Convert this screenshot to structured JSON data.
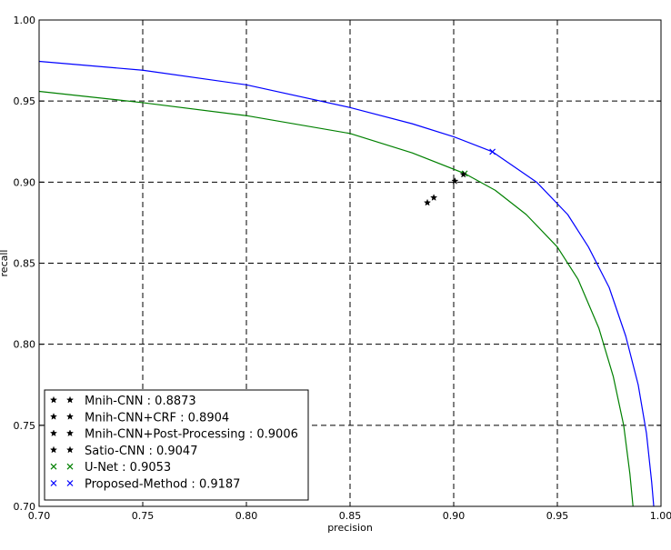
{
  "chart_data": {
    "type": "line",
    "xlabel": "precision",
    "ylabel": "recall",
    "xlim": [
      0.7,
      1.0
    ],
    "ylim": [
      0.7,
      1.0
    ],
    "grid": true,
    "grid_style": "dashed",
    "legend_position": "lower-left",
    "x_ticks": [
      "0.70",
      "0.75",
      "0.80",
      "0.85",
      "0.90",
      "0.95",
      "1.00"
    ],
    "y_ticks": [
      "0.70",
      "0.75",
      "0.80",
      "0.85",
      "0.90",
      "0.95",
      "1.00"
    ],
    "series": [
      {
        "name": "Proposed-Method : 0.9187",
        "kind": "curve",
        "color": "#0000ff",
        "marker": "x",
        "breakeven": [
          0.9187,
          0.9187
        ],
        "points": [
          [
            0.7,
            0.9745
          ],
          [
            0.75,
            0.969
          ],
          [
            0.8,
            0.96
          ],
          [
            0.85,
            0.946
          ],
          [
            0.88,
            0.936
          ],
          [
            0.9,
            0.928
          ],
          [
            0.9187,
            0.9187
          ],
          [
            0.94,
            0.9
          ],
          [
            0.955,
            0.88
          ],
          [
            0.965,
            0.86
          ],
          [
            0.975,
            0.835
          ],
          [
            0.983,
            0.805
          ],
          [
            0.989,
            0.775
          ],
          [
            0.993,
            0.745
          ],
          [
            0.9955,
            0.715
          ],
          [
            0.9965,
            0.7
          ]
        ]
      },
      {
        "name": "U-Net : 0.9053",
        "kind": "curve",
        "color": "#008000",
        "marker": "x",
        "breakeven": [
          0.9053,
          0.9053
        ],
        "points": [
          [
            0.7,
            0.956
          ],
          [
            0.75,
            0.949
          ],
          [
            0.8,
            0.941
          ],
          [
            0.85,
            0.93
          ],
          [
            0.88,
            0.918
          ],
          [
            0.9053,
            0.9053
          ],
          [
            0.92,
            0.895
          ],
          [
            0.935,
            0.88
          ],
          [
            0.95,
            0.86
          ],
          [
            0.96,
            0.84
          ],
          [
            0.97,
            0.81
          ],
          [
            0.977,
            0.78
          ],
          [
            0.982,
            0.75
          ],
          [
            0.985,
            0.72
          ],
          [
            0.9865,
            0.7
          ]
        ]
      },
      {
        "name": "Mnih-CNN : 0.8873",
        "kind": "point",
        "color": "#000000",
        "marker": "star",
        "x": 0.8873,
        "y": 0.8873
      },
      {
        "name": "Mnih-CNN+CRF : 0.8904",
        "kind": "point",
        "color": "#000000",
        "marker": "star",
        "x": 0.8904,
        "y": 0.8904
      },
      {
        "name": "Mnih-CNN+Post-Processing : 0.9006",
        "kind": "point",
        "color": "#000000",
        "marker": "star",
        "x": 0.9006,
        "y": 0.9006
      },
      {
        "name": "Satio-CNN : 0.9047",
        "kind": "point",
        "color": "#000000",
        "marker": "star",
        "x": 0.9047,
        "y": 0.9047
      }
    ],
    "legend_order": [
      {
        "label": "Mnih-CNN : 0.8873",
        "marker": "star",
        "color": "#000000"
      },
      {
        "label": "Mnih-CNN+CRF : 0.8904",
        "marker": "star",
        "color": "#000000"
      },
      {
        "label": "Mnih-CNN+Post-Processing : 0.9006",
        "marker": "star",
        "color": "#000000"
      },
      {
        "label": "Satio-CNN : 0.9047",
        "marker": "star",
        "color": "#000000"
      },
      {
        "label": "U-Net : 0.9053",
        "marker": "x",
        "color": "#008000"
      },
      {
        "label": "Proposed-Method : 0.9187",
        "marker": "x",
        "color": "#0000ff"
      }
    ]
  }
}
